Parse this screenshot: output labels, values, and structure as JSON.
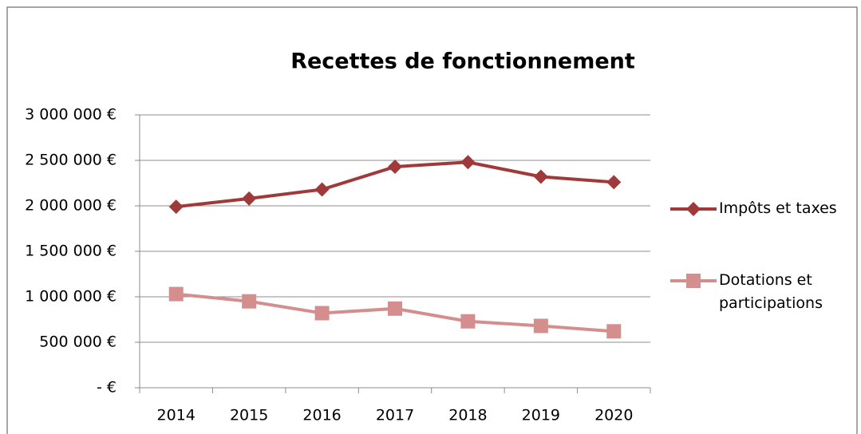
{
  "chart_data": {
    "type": "line",
    "title": "Recettes de fonctionnement",
    "categories": [
      "2014",
      "2015",
      "2016",
      "2017",
      "2018",
      "2019",
      "2020"
    ],
    "series": [
      {
        "name": "Impôts et taxes",
        "color": "#a0393a",
        "marker": "diamond",
        "values": [
          1990000,
          2080000,
          2180000,
          2430000,
          2480000,
          2320000,
          2260000
        ]
      },
      {
        "name": "Dotations et participations",
        "color": "#d48e8e",
        "marker": "square",
        "values": [
          1030000,
          950000,
          820000,
          870000,
          730000,
          680000,
          620000
        ]
      }
    ],
    "ylim": [
      0,
      3000000
    ],
    "yticks": [
      {
        "value": 0,
        "label": "- €"
      },
      {
        "value": 500000,
        "label": "500 000 €"
      },
      {
        "value": 1000000,
        "label": "1 000 000 €"
      },
      {
        "value": 1500000,
        "label": "1 500 000 €"
      },
      {
        "value": 2000000,
        "label": "2 000 000 €"
      },
      {
        "value": 2500000,
        "label": "2 500 000 €"
      },
      {
        "value": 3000000,
        "label": "3 000 000 €"
      }
    ],
    "grid": true,
    "legend": "right"
  }
}
